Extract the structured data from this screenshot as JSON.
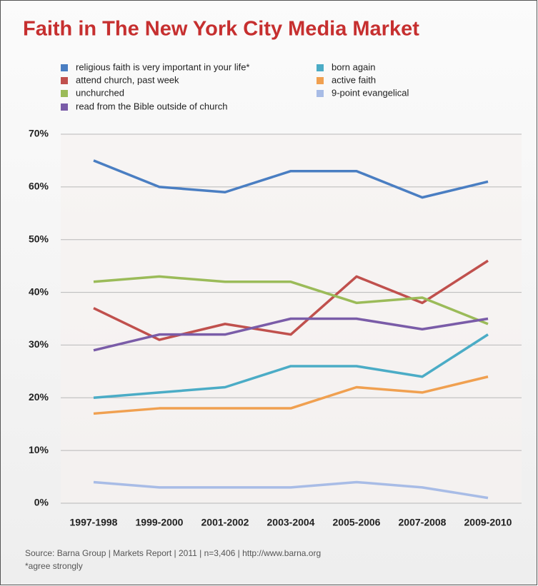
{
  "chart_data": {
    "type": "line",
    "title": "Faith in The New York City Media Market",
    "categories": [
      "1997-1998",
      "1999-2000",
      "2001-2002",
      "2003-2004",
      "2005-2006",
      "2007-2008",
      "2009-2010"
    ],
    "series": [
      {
        "name": "religious faith is very important in your life*",
        "color": "#4a7ec2",
        "values": [
          65,
          60,
          59,
          63,
          63,
          58,
          61
        ]
      },
      {
        "name": "attend church, past week",
        "color": "#c0504d",
        "values": [
          37,
          31,
          34,
          32,
          43,
          38,
          46
        ]
      },
      {
        "name": "unchurched",
        "color": "#9bbb59",
        "values": [
          42,
          43,
          42,
          42,
          38,
          39,
          34
        ]
      },
      {
        "name": "read from the Bible outside of church",
        "color": "#7a5ca8",
        "values": [
          29,
          32,
          32,
          35,
          35,
          33,
          35
        ]
      },
      {
        "name": "born again",
        "color": "#4bacc6",
        "values": [
          20,
          21,
          22,
          26,
          26,
          24,
          32
        ]
      },
      {
        "name": "active faith",
        "color": "#f0a050",
        "values": [
          17,
          18,
          18,
          18,
          22,
          21,
          24
        ]
      },
      {
        "name": "9-point evangelical",
        "color": "#a8bce6",
        "values": [
          4,
          3,
          3,
          3,
          4,
          3,
          1
        ]
      }
    ],
    "ylim": [
      0,
      70
    ],
    "yticks": [
      {
        "value": 0,
        "label": "0%"
      },
      {
        "value": 10,
        "label": "10%"
      },
      {
        "value": 20,
        "label": "20%"
      },
      {
        "value": 30,
        "label": "30%"
      },
      {
        "value": 40,
        "label": "40%"
      },
      {
        "value": 50,
        "label": "50%"
      },
      {
        "value": 60,
        "label": "60%"
      },
      {
        "value": 70,
        "label": "70%"
      }
    ],
    "grid": true,
    "source": "Source: Barna Group | Markets Report | 2011 | n=3,406 | http://www.barna.org",
    "footnote": "*agree strongly"
  }
}
